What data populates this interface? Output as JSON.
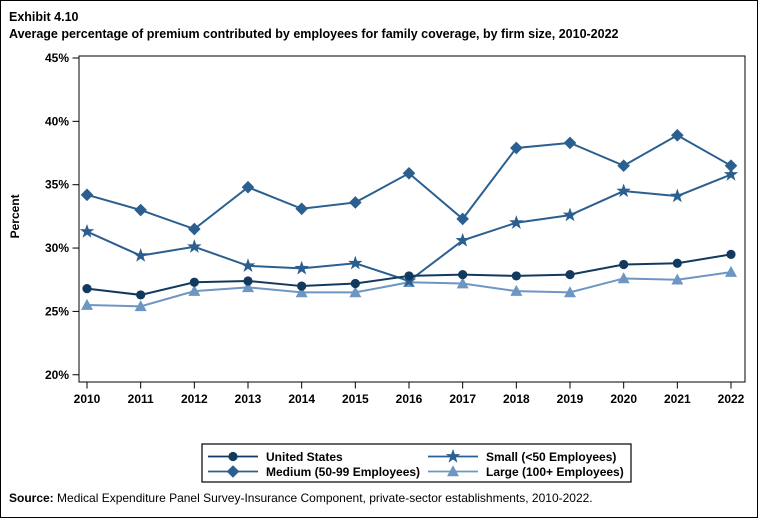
{
  "title": {
    "exhibit": "Exhibit 4.10",
    "subtitle": "Average percentage of premium contributed by employees for family coverage, by firm size, 2010-2022"
  },
  "source": {
    "label": "Source:",
    "text": " Medical Expenditure Panel Survey-Insurance Component, private-sector establishments, 2010-2022."
  },
  "chart_data": {
    "type": "line",
    "title": "Average percentage of premium contributed by employees for family coverage, by firm size, 2010-2022",
    "xlabel": "",
    "ylabel": "Percent",
    "categories": [
      "2010",
      "2011",
      "2012",
      "2013",
      "2014",
      "2015",
      "2016",
      "2017",
      "2018",
      "2019",
      "2020",
      "2021",
      "2022"
    ],
    "yticks": [
      45,
      40,
      35,
      30,
      25,
      20
    ],
    "ytick_suffix": "%",
    "ylim": [
      19.3,
      45
    ],
    "grid": false,
    "legend_position": "bottom-box",
    "legend_columns": 2,
    "series": [
      {
        "name": "United States",
        "marker": "circle",
        "color": "#123a5e",
        "values": [
          26.8,
          26.3,
          27.3,
          27.4,
          27.0,
          27.2,
          27.8,
          27.9,
          27.8,
          27.9,
          28.7,
          28.8,
          29.5
        ]
      },
      {
        "name": "Small (<50 Employees)",
        "marker": "star",
        "color": "#2b5f8f",
        "values": [
          31.3,
          29.4,
          30.1,
          28.6,
          28.4,
          28.8,
          27.4,
          30.6,
          32.0,
          32.6,
          34.5,
          34.1,
          35.8
        ]
      },
      {
        "name": "Medium (50-99 Employees)",
        "marker": "diamond",
        "color": "#2b5f8f",
        "values": [
          34.2,
          33.0,
          31.5,
          34.8,
          33.1,
          33.6,
          35.9,
          32.3,
          37.9,
          38.3,
          36.5,
          38.9,
          36.5
        ]
      },
      {
        "name": "Large (100+ Employees)",
        "marker": "triangle",
        "color": "#6d96c3",
        "values": [
          25.5,
          25.4,
          26.6,
          26.9,
          26.5,
          26.5,
          27.3,
          27.2,
          26.6,
          26.5,
          27.6,
          27.5,
          28.1
        ]
      }
    ]
  }
}
